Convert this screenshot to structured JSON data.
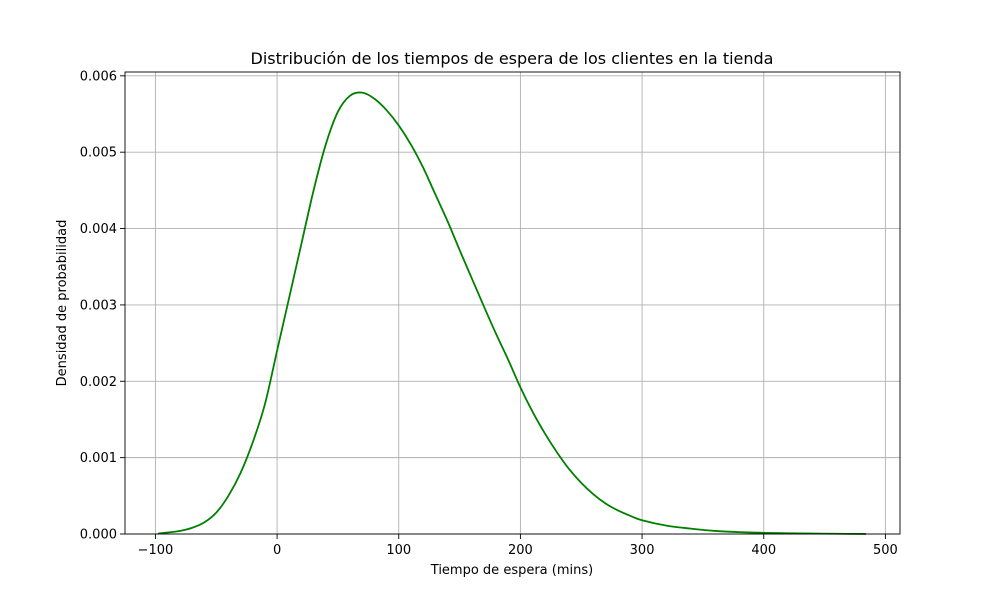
{
  "chart_data": {
    "type": "line",
    "title": "Distribución de los tiempos de espera de los clientes en la tienda",
    "xlabel": "Tiempo de espera (mins)",
    "ylabel": "Densidad de probabilidad",
    "xlim": [
      -125,
      512
    ],
    "ylim": [
      0,
      0.00605
    ],
    "xticks": [
      -100,
      0,
      100,
      200,
      300,
      400,
      500
    ],
    "xtick_labels": [
      "−100",
      "0",
      "100",
      "200",
      "300",
      "400",
      "500"
    ],
    "yticks": [
      0,
      0.001,
      0.002,
      0.003,
      0.004,
      0.005,
      0.006
    ],
    "ytick_labels": [
      "0.000",
      "0.001",
      "0.002",
      "0.003",
      "0.004",
      "0.005",
      "0.006"
    ],
    "grid": true,
    "series": [
      {
        "color": "#008000",
        "x": [
          -98,
          -90,
          -80,
          -70,
          -60,
          -50,
          -40,
          -30,
          -20,
          -10,
          0,
          10,
          20,
          30,
          40,
          50,
          60,
          70,
          80,
          90,
          100,
          110,
          120,
          130,
          140,
          150,
          160,
          170,
          180,
          190,
          200,
          210,
          220,
          230,
          240,
          250,
          260,
          270,
          280,
          290,
          300,
          320,
          340,
          360,
          380,
          400,
          420,
          440,
          460,
          484
        ],
        "y": [
          5e-06,
          2e-05,
          4e-05,
          8e-05,
          0.00015,
          0.00028,
          0.0005,
          0.0008,
          0.0012,
          0.0017,
          0.0024,
          0.0031,
          0.0038,
          0.0045,
          0.0051,
          0.00553,
          0.00574,
          0.00578,
          0.0057,
          0.00555,
          0.00535,
          0.0051,
          0.0048,
          0.00445,
          0.0041,
          0.00372,
          0.00335,
          0.00298,
          0.00262,
          0.00228,
          0.00192,
          0.0016,
          0.00132,
          0.00107,
          0.00085,
          0.00067,
          0.00052,
          0.0004,
          0.00031,
          0.00024,
          0.00018,
          0.00011,
          7e-05,
          4e-05,
          2.5e-05,
          1.5e-05,
          1e-05,
          6e-06,
          3e-06,
          1e-06
        ]
      }
    ]
  }
}
